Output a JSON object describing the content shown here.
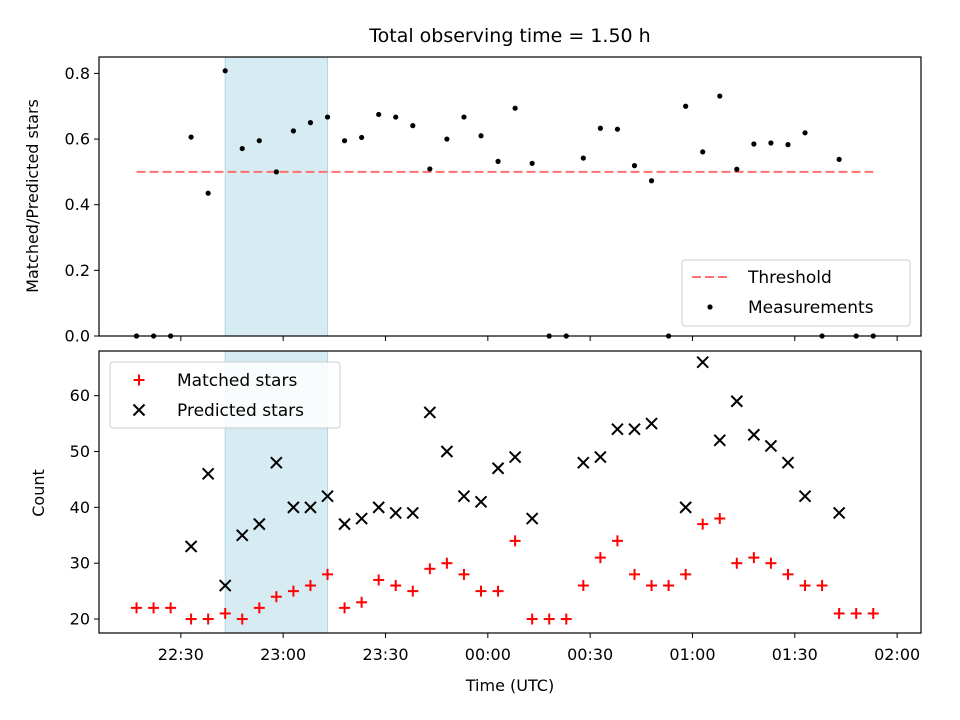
{
  "chart_data": [
    {
      "type": "scatter",
      "title": "Total observing time = 1.50 h",
      "xlabel": "",
      "ylabel": "Matched/Predicted stars",
      "x_unit": "time (UTC)",
      "xlim": [
        "22:06",
        "02:07"
      ],
      "ylim": [
        0,
        0.85
      ],
      "yticks": [
        0.0,
        0.2,
        0.4,
        0.6,
        0.8
      ],
      "xticks": [
        "22:30",
        "23:00",
        "23:30",
        "00:00",
        "00:30",
        "01:00",
        "01:30",
        "02:00"
      ],
      "shaded_interval": [
        "22:43",
        "23:13"
      ],
      "threshold": {
        "name": "Threshold",
        "value": 0.5,
        "x_range": [
          "22:17",
          "01:53"
        ],
        "color": "#ff7070"
      },
      "legend": {
        "position": "bottom-right",
        "entries": [
          "Threshold",
          "Measurements"
        ]
      },
      "series": [
        {
          "name": "Measurements",
          "color": "#000000",
          "points": [
            [
              "22:17",
              0.0
            ],
            [
              "22:22",
              0.0
            ],
            [
              "22:27",
              0.0
            ],
            [
              "22:33",
              0.606
            ],
            [
              "22:38",
              0.435
            ],
            [
              "22:43",
              0.808
            ],
            [
              "22:48",
              0.571
            ],
            [
              "22:53",
              0.595
            ],
            [
              "22:58",
              0.5
            ],
            [
              "23:03",
              0.625
            ],
            [
              "23:08",
              0.65
            ],
            [
              "23:13",
              0.667
            ],
            [
              "23:18",
              0.595
            ],
            [
              "23:23",
              0.605
            ],
            [
              "23:28",
              0.675
            ],
            [
              "23:33",
              0.667
            ],
            [
              "23:38",
              0.641
            ],
            [
              "23:43",
              0.509
            ],
            [
              "23:48",
              0.6
            ],
            [
              "23:53",
              0.667
            ],
            [
              "23:58",
              0.61
            ],
            [
              "00:03",
              0.532
            ],
            [
              "00:08",
              0.694
            ],
            [
              "00:13",
              0.526
            ],
            [
              "00:18",
              0.0
            ],
            [
              "00:23",
              0.0
            ],
            [
              "00:28",
              0.542
            ],
            [
              "00:33",
              0.633
            ],
            [
              "00:38",
              0.63
            ],
            [
              "00:43",
              0.519
            ],
            [
              "00:48",
              0.473
            ],
            [
              "00:53",
              0.0
            ],
            [
              "00:58",
              0.7
            ],
            [
              "01:03",
              0.561
            ],
            [
              "01:08",
              0.731
            ],
            [
              "01:13",
              0.508
            ],
            [
              "01:18",
              0.585
            ],
            [
              "01:23",
              0.588
            ],
            [
              "01:28",
              0.583
            ],
            [
              "01:33",
              0.619
            ],
            [
              "01:38",
              0.0
            ],
            [
              "01:43",
              0.538
            ],
            [
              "01:48",
              0.0
            ],
            [
              "01:53",
              0.0
            ]
          ]
        }
      ]
    },
    {
      "type": "scatter",
      "title": "",
      "xlabel": "Time (UTC)",
      "ylabel": "Count",
      "x_unit": "time (UTC)",
      "xlim": [
        "22:06",
        "02:07"
      ],
      "ylim": [
        17.5,
        68
      ],
      "yticks": [
        20,
        30,
        40,
        50,
        60
      ],
      "xticks": [
        "22:30",
        "23:00",
        "23:30",
        "00:00",
        "00:30",
        "01:00",
        "01:30",
        "02:00"
      ],
      "shaded_interval": [
        "22:43",
        "23:13"
      ],
      "legend": {
        "position": "top-left",
        "entries": [
          "Matched stars",
          "Predicted stars"
        ]
      },
      "series": [
        {
          "name": "Matched stars",
          "marker": "plus",
          "color": "#ff0000",
          "points": [
            [
              "22:17",
              22
            ],
            [
              "22:22",
              22
            ],
            [
              "22:27",
              22
            ],
            [
              "22:33",
              20
            ],
            [
              "22:38",
              20
            ],
            [
              "22:43",
              21
            ],
            [
              "22:48",
              20
            ],
            [
              "22:53",
              22
            ],
            [
              "22:58",
              24
            ],
            [
              "23:03",
              25
            ],
            [
              "23:08",
              26
            ],
            [
              "23:13",
              28
            ],
            [
              "23:18",
              22
            ],
            [
              "23:23",
              23
            ],
            [
              "23:28",
              27
            ],
            [
              "23:33",
              26
            ],
            [
              "23:38",
              25
            ],
            [
              "23:43",
              29
            ],
            [
              "23:48",
              30
            ],
            [
              "23:53",
              28
            ],
            [
              "23:58",
              25
            ],
            [
              "00:03",
              25
            ],
            [
              "00:08",
              34
            ],
            [
              "00:13",
              20
            ],
            [
              "00:18",
              20
            ],
            [
              "00:23",
              20
            ],
            [
              "00:28",
              26
            ],
            [
              "00:33",
              31
            ],
            [
              "00:38",
              34
            ],
            [
              "00:43",
              28
            ],
            [
              "00:48",
              26
            ],
            [
              "00:53",
              26
            ],
            [
              "00:58",
              28
            ],
            [
              "01:03",
              37
            ],
            [
              "01:08",
              38
            ],
            [
              "01:13",
              30
            ],
            [
              "01:18",
              31
            ],
            [
              "01:23",
              30
            ],
            [
              "01:28",
              28
            ],
            [
              "01:33",
              26
            ],
            [
              "01:38",
              26
            ],
            [
              "01:43",
              21
            ],
            [
              "01:48",
              21
            ],
            [
              "01:53",
              21
            ]
          ]
        },
        {
          "name": "Predicted stars",
          "marker": "x",
          "color": "#000000",
          "points": [
            [
              "22:33",
              33
            ],
            [
              "22:38",
              46
            ],
            [
              "22:43",
              26
            ],
            [
              "22:48",
              35
            ],
            [
              "22:53",
              37
            ],
            [
              "22:58",
              48
            ],
            [
              "23:03",
              40
            ],
            [
              "23:08",
              40
            ],
            [
              "23:13",
              42
            ],
            [
              "23:18",
              37
            ],
            [
              "23:23",
              38
            ],
            [
              "23:28",
              40
            ],
            [
              "23:33",
              39
            ],
            [
              "23:38",
              39
            ],
            [
              "23:43",
              57
            ],
            [
              "23:48",
              50
            ],
            [
              "23:53",
              42
            ],
            [
              "23:58",
              41
            ],
            [
              "00:03",
              47
            ],
            [
              "00:08",
              49
            ],
            [
              "00:13",
              38
            ],
            [
              "00:28",
              48
            ],
            [
              "00:33",
              49
            ],
            [
              "00:38",
              54
            ],
            [
              "00:43",
              54
            ],
            [
              "00:48",
              55
            ],
            [
              "00:58",
              40
            ],
            [
              "01:03",
              66
            ],
            [
              "01:08",
              52
            ],
            [
              "01:13",
              59
            ],
            [
              "01:18",
              53
            ],
            [
              "01:23",
              51
            ],
            [
              "01:28",
              48
            ],
            [
              "01:33",
              42
            ],
            [
              "01:43",
              39
            ]
          ]
        }
      ]
    }
  ]
}
